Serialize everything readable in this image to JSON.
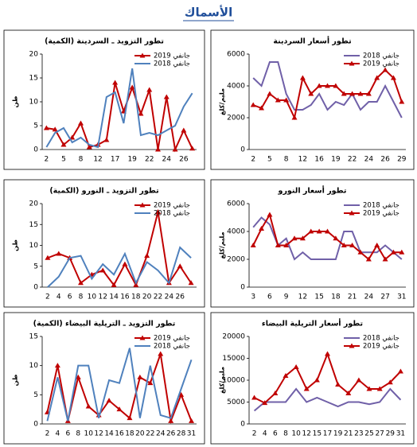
{
  "title": "الأسماك",
  "chart_data": [
    {
      "type": "line",
      "title": "تطور أسعار السردينة",
      "y_label": "مليم/كلغ",
      "categories": [
        "2",
        null,
        "5",
        null,
        "8",
        null,
        "12",
        null,
        "16",
        null,
        "19",
        null,
        "22",
        null,
        "24",
        null,
        "26",
        null,
        "29"
      ],
      "series": [
        {
          "name": "جانفي 2018",
          "color": "#7060a8",
          "marker": "none",
          "values": [
            4500,
            4000,
            5500,
            5500,
            3500,
            2500,
            2500,
            2800,
            3500,
            2500,
            3000,
            2800,
            3500,
            2500,
            3000,
            3000,
            4000,
            3000,
            2000
          ]
        },
        {
          "name": "جانفي 2019",
          "color": "#c00000",
          "marker": "triangle",
          "values": [
            2800,
            2600,
            3500,
            3100,
            3100,
            2000,
            4500,
            3500,
            4000,
            4000,
            4000,
            3500,
            3500,
            3500,
            3500,
            4500,
            5000,
            4500,
            3000
          ]
        }
      ],
      "ylim": [
        0,
        6000
      ],
      "yticks": [
        0,
        2000,
        4000,
        6000
      ],
      "grid": false,
      "legend": "top-right"
    },
    {
      "type": "line",
      "title": "تطور التزويد ـ السردينة (الكمية)",
      "y_label": "طن",
      "categories": [
        "2",
        null,
        "5",
        null,
        "8",
        null,
        "12",
        null,
        "17",
        null,
        "19",
        null,
        "22",
        null,
        "24",
        null,
        "26",
        null
      ],
      "series": [
        {
          "name": "جانفي 2019",
          "color": "#c00000",
          "marker": "triangle",
          "values": [
            4.5,
            4.2,
            1,
            2.5,
            5.5,
            0.5,
            1,
            2,
            14,
            8,
            13,
            7.5,
            12.5,
            0,
            11,
            0,
            4,
            0.2
          ]
        },
        {
          "name": "جانفي 2018",
          "color": "#4f81bd",
          "marker": "none",
          "values": [
            0.5,
            3.5,
            4.5,
            1.5,
            2.5,
            1,
            0.5,
            11,
            12,
            5.5,
            17,
            3,
            3.5,
            3,
            4,
            5,
            9,
            11.8
          ]
        }
      ],
      "ylim": [
        0,
        20
      ],
      "yticks": [
        0,
        5,
        10,
        15,
        20
      ],
      "grid": false,
      "legend": "top-right"
    },
    {
      "type": "line",
      "title": "تطور أسعار النورو",
      "y_label": "مليم/كلغ",
      "categories": [
        "3",
        null,
        "6",
        null,
        "9",
        null,
        "12",
        null,
        "15",
        null,
        "18",
        null,
        "21",
        null,
        "24",
        null,
        "27",
        null,
        "31"
      ],
      "series": [
        {
          "name": "جانفي 2018",
          "color": "#7060a8",
          "marker": "none",
          "values": [
            4300,
            5000,
            4500,
            3000,
            3500,
            2000,
            2500,
            2000,
            2000,
            2000,
            2000,
            4000,
            4000,
            2500,
            2500,
            2500,
            3000,
            2500,
            2000
          ]
        },
        {
          "name": "جانفي 2019",
          "color": "#c00000",
          "marker": "triangle",
          "values": [
            3000,
            4200,
            5200,
            3000,
            3000,
            3500,
            3500,
            4000,
            4000,
            4000,
            3500,
            3000,
            3000,
            2500,
            2000,
            3000,
            2000,
            2500,
            2500
          ]
        }
      ],
      "ylim": [
        0,
        6000
      ],
      "yticks": [
        0,
        2000,
        4000,
        6000
      ],
      "grid": false,
      "legend": "top-right"
    },
    {
      "type": "line",
      "title": "تطور التزويد ـ النورو (الكمية)",
      "y_label": "طن",
      "categories": [
        "2",
        "4",
        "6",
        "8",
        "10",
        "12",
        "14",
        "16",
        "18",
        "20",
        "22",
        "24",
        "26",
        null
      ],
      "series": [
        {
          "name": "جانفي 2019",
          "color": "#c00000",
          "marker": "triangle",
          "values": [
            7,
            8,
            7,
            1,
            3,
            4,
            0.5,
            5.5,
            0.5,
            7.5,
            18,
            1,
            5,
            1
          ]
        },
        {
          "name": "جانفي 2018",
          "color": "#4f81bd",
          "marker": "none",
          "values": [
            0,
            2.5,
            7,
            7.5,
            2,
            5.5,
            3,
            8,
            1,
            6,
            4,
            1,
            9.5,
            7
          ]
        }
      ],
      "ylim": [
        0,
        20
      ],
      "yticks": [
        0,
        5,
        10,
        15,
        20
      ],
      "grid": false,
      "legend": "top-right"
    },
    {
      "type": "line",
      "title": "تطور أسعار التريلية البيضاء",
      "y_label": "مليم/كلغ",
      "categories": [
        "2",
        "4",
        "6",
        "8",
        "10",
        "12",
        "15",
        "17",
        "19",
        "21",
        "23",
        "25",
        "27",
        "29",
        "31"
      ],
      "series": [
        {
          "name": "جانفي 2018",
          "color": "#7060a8",
          "marker": "none",
          "values": [
            3000,
            5000,
            5000,
            5000,
            8000,
            5000,
            6000,
            5000,
            4000,
            5000,
            5000,
            4500,
            5000,
            8000,
            5500
          ]
        },
        {
          "name": "جانفي 2019",
          "color": "#c00000",
          "marker": "triangle",
          "values": [
            6000,
            4800,
            7000,
            11000,
            13000,
            8000,
            10000,
            16000,
            9000,
            7000,
            10000,
            8000,
            8000,
            9500,
            12000
          ]
        }
      ],
      "ylim": [
        0,
        20000
      ],
      "yticks": [
        0,
        5000,
        10000,
        15000,
        20000
      ],
      "grid": false,
      "legend": "top-right"
    },
    {
      "type": "line",
      "title": "تطور التزويد ـ التريلية البيضاء (الكمية)",
      "y_label": "طن",
      "categories": [
        "2",
        "4",
        "6",
        "8",
        "10",
        "12",
        "14",
        "16",
        "18",
        "20",
        "22",
        "24",
        "26",
        "28",
        "31"
      ],
      "series": [
        {
          "name": "جانفي 2019",
          "color": "#c00000",
          "marker": "triangle",
          "values": [
            2,
            10,
            0.5,
            8,
            3,
            1.5,
            4,
            2.5,
            1,
            8,
            7,
            12,
            0.5,
            5,
            0.5
          ]
        },
        {
          "name": "جانفي 2018",
          "color": "#4f81bd",
          "marker": "none",
          "values": [
            0.5,
            8,
            0.5,
            10,
            10,
            1,
            7.5,
            7,
            13,
            1,
            10,
            1.5,
            1,
            6,
            11
          ]
        }
      ],
      "ylim": [
        0,
        15
      ],
      "yticks": [
        0,
        5,
        10,
        15
      ],
      "grid": false,
      "legend": "top-right"
    }
  ]
}
